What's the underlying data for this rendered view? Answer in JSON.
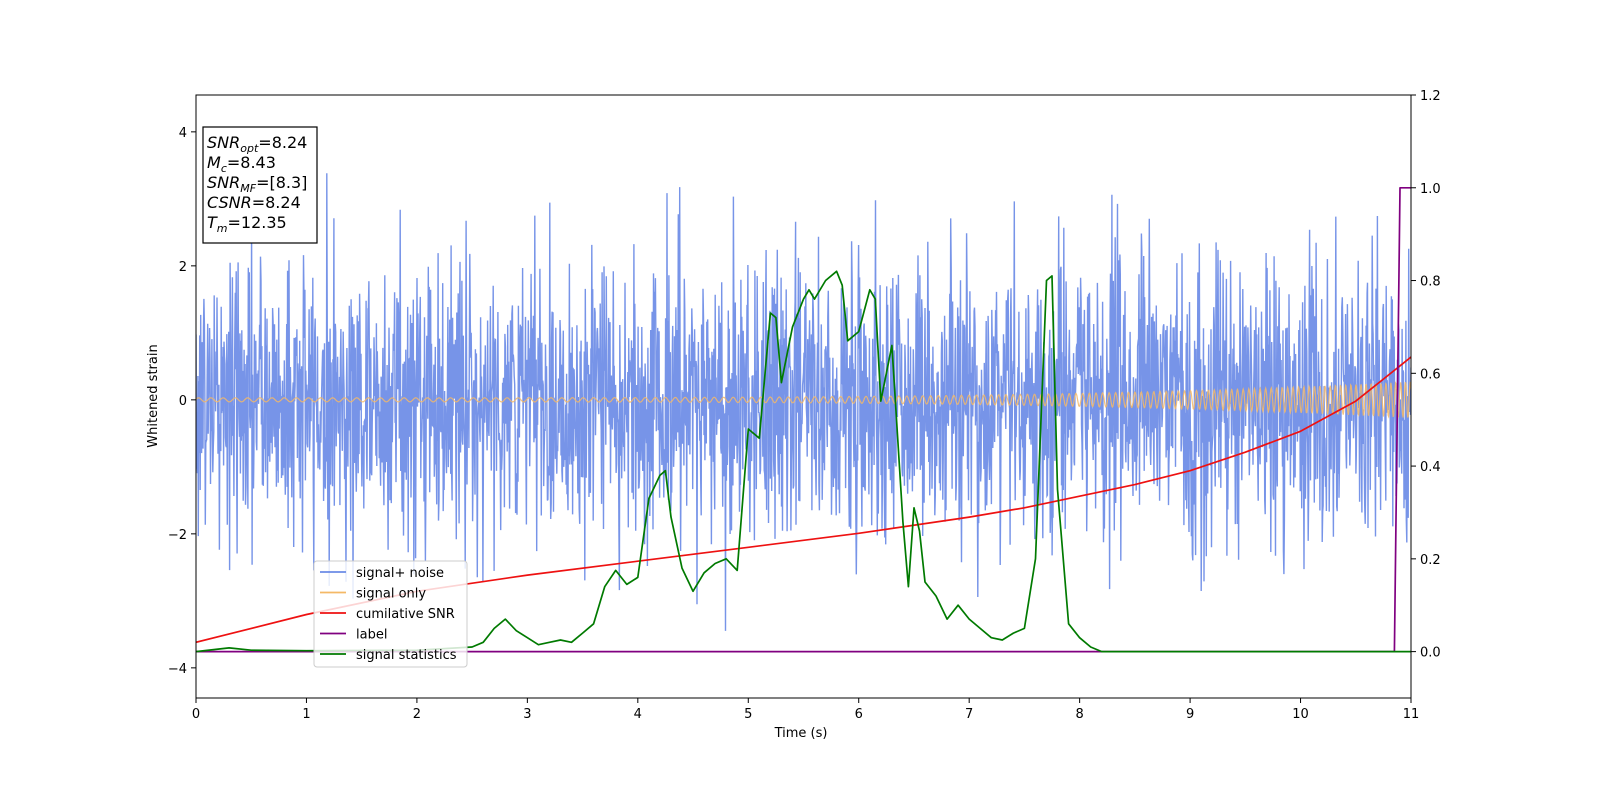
{
  "chart_data": {
    "type": "line",
    "xlabel": "Time (s)",
    "ylabel": "Whitened strain",
    "xlim": [
      0,
      11
    ],
    "ylim_left": [
      -4.45,
      4.55
    ],
    "ylim_right": [
      -0.1,
      1.2
    ],
    "xticks": [
      "0",
      "1",
      "2",
      "3",
      "4",
      "5",
      "6",
      "7",
      "8",
      "9",
      "10",
      "11"
    ],
    "yticks_left": [
      "−4",
      "−2",
      "0",
      "2",
      "4"
    ],
    "yticks_right": [
      "0.0",
      "0.2",
      "0.4",
      "0.6",
      "0.8",
      "1.0",
      "1.2"
    ],
    "grid": false,
    "legend_position": "lower-left",
    "annotation": [
      {
        "sym": "SNR",
        "sub": "opt",
        "value": "=8.24"
      },
      {
        "sym": "M",
        "sub": "c",
        "value": "=8.43"
      },
      {
        "sym": "SNR",
        "sub": "MF",
        "value": "=[8.3]"
      },
      {
        "sym": "CSNR",
        "sub": "",
        "value": "=8.24"
      },
      {
        "sym": "T",
        "sub": "m",
        "value": "=12.35"
      }
    ],
    "series": [
      {
        "name": "signal+ noise",
        "axis": "left",
        "color": "#6b8be6",
        "style": "noise",
        "std": 1.0,
        "amplitude_range": [
          -4.0,
          4.15
        ]
      },
      {
        "name": "signal only",
        "axis": "left",
        "color": "#f4b966",
        "style": "chirp",
        "amplitude_start": 0.03,
        "amplitude_end": 0.27
      },
      {
        "name": "cumilative SNR",
        "axis": "right",
        "color": "#ee1111",
        "x": [
          0,
          1,
          2,
          3,
          4,
          5,
          6,
          7,
          7.5,
          8,
          8.5,
          9,
          9.5,
          10,
          10.5,
          11
        ],
        "y": [
          0.02,
          0.08,
          0.13,
          0.165,
          0.195,
          0.225,
          0.255,
          0.29,
          0.31,
          0.335,
          0.36,
          0.39,
          0.43,
          0.475,
          0.54,
          0.635
        ]
      },
      {
        "name": "label",
        "axis": "right",
        "color": "#800080",
        "x": [
          0,
          10.85,
          10.9,
          11
        ],
        "y": [
          0.0,
          0.0,
          1.0,
          1.0
        ]
      },
      {
        "name": "signal statistics",
        "axis": "right",
        "color": "#007a00",
        "x": [
          0,
          0.3,
          0.5,
          1.0,
          2.0,
          2.5,
          2.6,
          2.7,
          2.8,
          2.9,
          3.0,
          3.1,
          3.2,
          3.3,
          3.4,
          3.5,
          3.6,
          3.7,
          3.8,
          3.9,
          4.0,
          4.1,
          4.2,
          4.25,
          4.3,
          4.4,
          4.5,
          4.6,
          4.7,
          4.8,
          4.9,
          5.0,
          5.1,
          5.2,
          5.25,
          5.3,
          5.4,
          5.5,
          5.55,
          5.6,
          5.7,
          5.8,
          5.85,
          5.9,
          6.0,
          6.1,
          6.15,
          6.2,
          6.3,
          6.4,
          6.45,
          6.5,
          6.55,
          6.6,
          6.7,
          6.8,
          6.9,
          7.0,
          7.1,
          7.2,
          7.3,
          7.4,
          7.5,
          7.6,
          7.7,
          7.75,
          7.8,
          7.9,
          8.0,
          8.1,
          8.2,
          9.0,
          10.0,
          10.85,
          11.0
        ],
        "y": [
          0.0,
          0.008,
          0.003,
          0.002,
          0.003,
          0.01,
          0.02,
          0.05,
          0.07,
          0.045,
          0.03,
          0.015,
          0.02,
          0.025,
          0.02,
          0.04,
          0.06,
          0.14,
          0.175,
          0.145,
          0.16,
          0.33,
          0.38,
          0.39,
          0.29,
          0.18,
          0.13,
          0.17,
          0.19,
          0.2,
          0.175,
          0.48,
          0.46,
          0.73,
          0.72,
          0.58,
          0.7,
          0.76,
          0.78,
          0.76,
          0.8,
          0.82,
          0.79,
          0.67,
          0.69,
          0.78,
          0.76,
          0.54,
          0.66,
          0.28,
          0.14,
          0.31,
          0.26,
          0.15,
          0.12,
          0.07,
          0.1,
          0.07,
          0.05,
          0.03,
          0.025,
          0.04,
          0.05,
          0.2,
          0.8,
          0.81,
          0.35,
          0.06,
          0.03,
          0.01,
          0.0,
          0.0,
          0.0,
          0.0,
          0.0
        ]
      }
    ]
  }
}
